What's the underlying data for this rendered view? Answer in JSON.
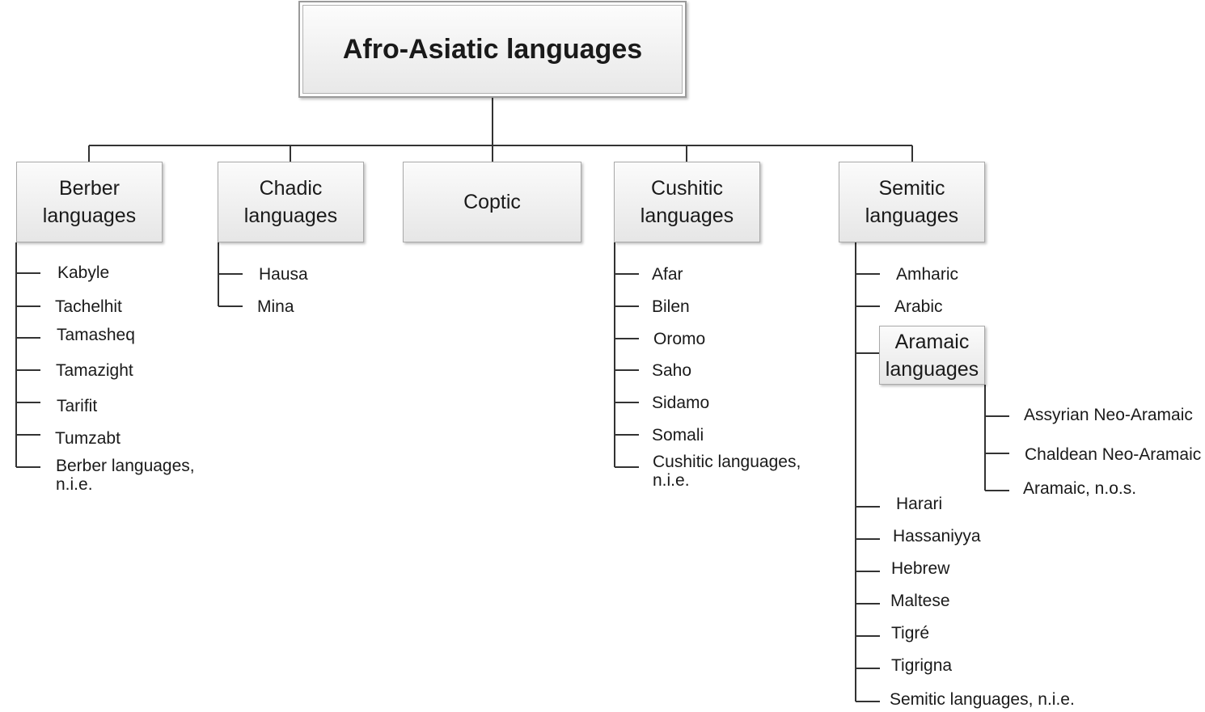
{
  "root": "Afro-Asiatic languages",
  "branches": {
    "berber": {
      "line1": "Berber",
      "line2": "languages"
    },
    "chadic": {
      "line1": "Chadic",
      "line2": "languages"
    },
    "coptic": {
      "line1": "Coptic"
    },
    "cushitic": {
      "line1": "Cushitic",
      "line2": "languages"
    },
    "semitic": {
      "line1": "Semitic",
      "line2": "languages"
    }
  },
  "berber_children": [
    "Kabyle",
    "Tachelhit",
    "Tamasheq",
    "Tamazight",
    "Tarifit",
    "Tumzabt",
    [
      "Berber languages,",
      "n.i.e."
    ]
  ],
  "chadic_children": [
    "Hausa",
    "Mina"
  ],
  "cushitic_children": [
    "Afar",
    "Bilen",
    "Oromo",
    "Saho",
    "Sidamo",
    "Somali",
    [
      "Cushitic languages,",
      "n.i.e."
    ]
  ],
  "semitic_children_top": [
    "Amharic",
    "Arabic"
  ],
  "aramaic": {
    "line1": "Aramaic",
    "line2": "languages"
  },
  "aramaic_children": [
    "Assyrian Neo-Aramaic",
    "Chaldean Neo-Aramaic",
    "Aramaic, n.o.s."
  ],
  "semitic_children_bottom": [
    "Harari",
    "Hassaniyya",
    "Hebrew",
    "Maltese",
    "Tigré",
    "Tigrigna",
    "Semitic languages, n.i.e."
  ]
}
